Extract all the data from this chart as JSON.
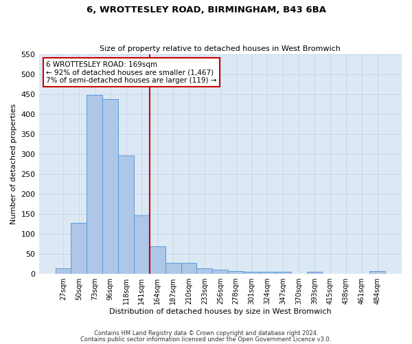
{
  "title": "6, WROTTESLEY ROAD, BIRMINGHAM, B43 6BA",
  "subtitle": "Size of property relative to detached houses in West Bromwich",
  "xlabel": "Distribution of detached houses by size in West Bromwich",
  "ylabel": "Number of detached properties",
  "footnote1": "Contains HM Land Registry data © Crown copyright and database right 2024.",
  "footnote2": "Contains public sector information licensed under the Open Government Licence v3.0.",
  "bin_labels": [
    "27sqm",
    "50sqm",
    "73sqm",
    "96sqm",
    "118sqm",
    "141sqm",
    "164sqm",
    "187sqm",
    "210sqm",
    "233sqm",
    "256sqm",
    "278sqm",
    "301sqm",
    "324sqm",
    "347sqm",
    "370sqm",
    "393sqm",
    "415sqm",
    "438sqm",
    "461sqm",
    "484sqm"
  ],
  "bar_values": [
    13,
    128,
    448,
    438,
    297,
    146,
    69,
    27,
    27,
    14,
    10,
    7,
    5,
    4,
    4,
    0,
    5,
    0,
    0,
    0,
    6
  ],
  "bar_color": "#aec6e8",
  "bar_edge_color": "#5b9bd5",
  "vline_bin_index": 6,
  "vline_color": "#cc0000",
  "annotation_text": "6 WROTTESLEY ROAD: 169sqm\n← 92% of detached houses are smaller (1,467)\n7% of semi-detached houses are larger (119) →",
  "annotation_box_color": "#ffffff",
  "annotation_box_edge": "#cc0000",
  "ylim": [
    0,
    550
  ],
  "yticks": [
    0,
    50,
    100,
    150,
    200,
    250,
    300,
    350,
    400,
    450,
    500,
    550
  ],
  "background_color": "#ffffff",
  "axes_bg_color": "#dce9f5",
  "grid_color": "#c0cfe0"
}
